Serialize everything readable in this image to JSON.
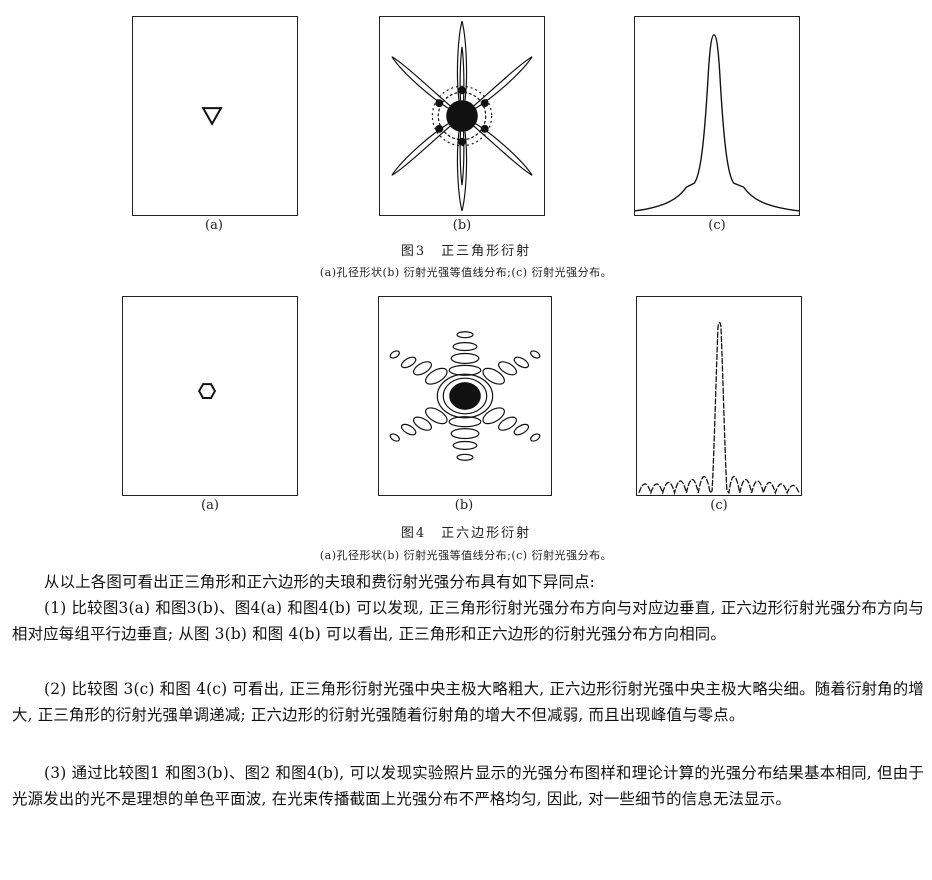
{
  "figure3": {
    "labels": [
      "(a)",
      "(b)",
      "(c)"
    ],
    "title": "图3　正三角形衍射",
    "description": "(a)孔径形状(b) 衍射光强等值线分布;(c) 衍射光强分布。"
  },
  "figure4": {
    "labels": [
      "(a)",
      "(b)",
      "(c)"
    ],
    "title": "图4　正六边形衍射",
    "description": "(a)孔径形状(b) 衍射光强等值线分布;(c) 衍射光强分布。"
  },
  "body": {
    "intro": "从以上各图可看出正三角形和正六边形的夫琅和费衍射光强分布具有如下异同点:",
    "point1": "(1) 比较图3(a) 和图3(b)、图4(a) 和图4(b) 可以发现, 正三角形衍射光强分布方向与对应边垂直, 正六边形衍射光强分布方向与相对应每组平行边垂直; 从图 3(b) 和图 4(b) 可以看出, 正三角形和正六边形的衍射光强分布方向相同。",
    "point2": "(2) 比较图 3(c) 和图 4(c) 可看出, 正三角形衍射光强中央主极大略粗大, 正六边形衍射光强中央主极大略尖细。随着衍射角的增大, 正三角形的衍射光强单调递减; 正六边形的衍射光强随着衍射角的增大不但减弱, 而且出现峰值与零点。",
    "point3": "(3) 通过比较图1 和图3(b)、图2 和图4(b), 可以发现实验照片显示的光强分布图样和理论计算的光强分布结果基本相同, 但由于光源发出的光不是理想的单色平面波, 在光束传播截面上光强分布不严格均匀, 因此, 对一些细节的信息无法显示。"
  }
}
